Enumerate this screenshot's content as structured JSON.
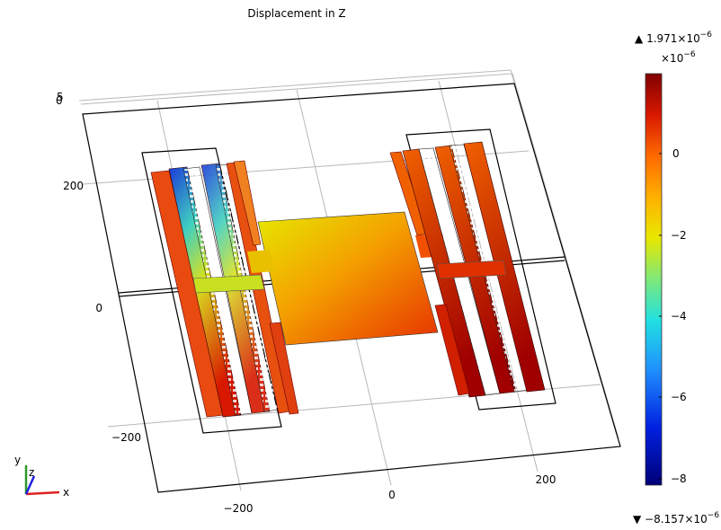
{
  "title": "Displacement in Z",
  "colorbar": {
    "max": {
      "marker": "▲",
      "mantissa": "1.971×10",
      "exponent": "−6"
    },
    "scale": {
      "mantissa": "×10",
      "exponent": "−6"
    },
    "ticks": [
      "0",
      "−2",
      "−4",
      "−6",
      "−8"
    ],
    "min": {
      "marker": "▼",
      "mantissa": "−8.157×10",
      "exponent": "−6"
    }
  },
  "axes": {
    "y_ticks": [
      "200",
      "0",
      "−200"
    ],
    "x_ticks": [
      "−200",
      "0",
      "200"
    ],
    "z_ticks": [
      "0",
      "5"
    ],
    "triad": {
      "x": "x",
      "y": "y",
      "z": "z"
    }
  }
}
